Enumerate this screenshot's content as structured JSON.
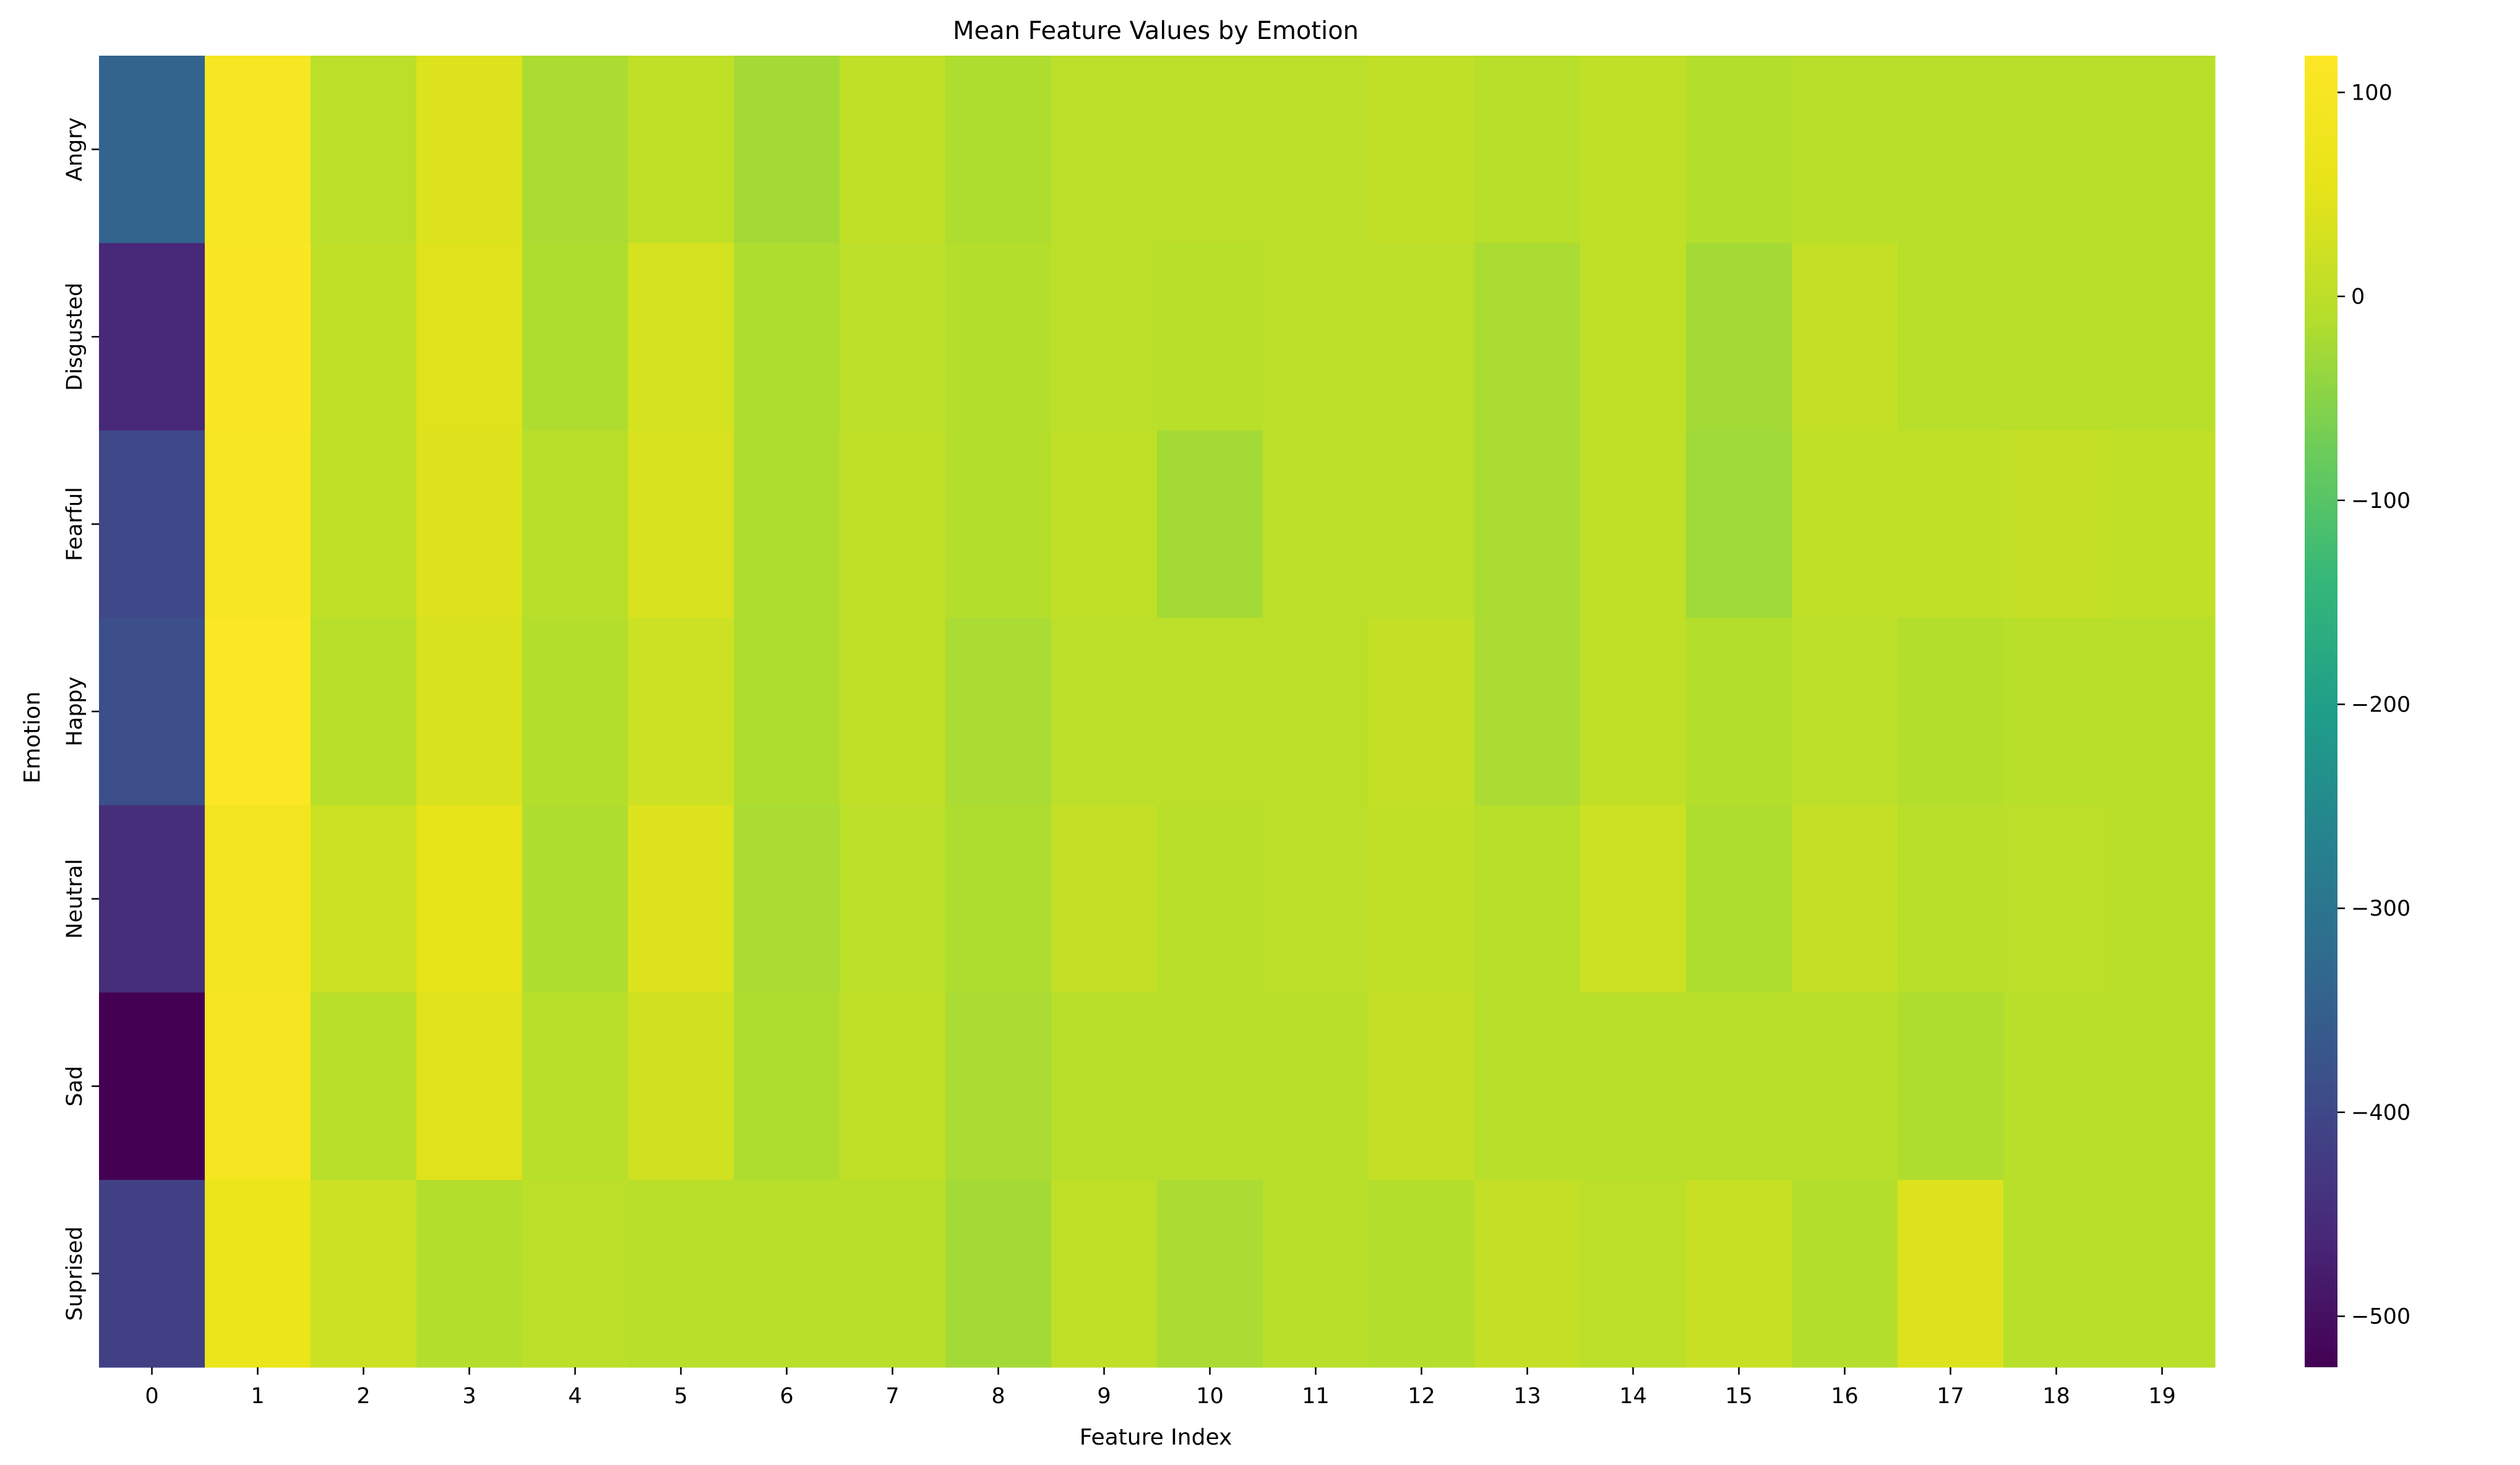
{
  "chart_data": {
    "type": "heatmap",
    "title": "Mean Feature Values by Emotion",
    "xlabel": "Feature Index",
    "ylabel": "Emotion",
    "x_categories": [
      "0",
      "1",
      "2",
      "3",
      "4",
      "5",
      "6",
      "7",
      "8",
      "9",
      "10",
      "11",
      "12",
      "13",
      "14",
      "15",
      "16",
      "17",
      "18",
      "19"
    ],
    "y_categories": [
      "Angry",
      "Disgusted",
      "Fearful",
      "Happy",
      "Neutral",
      "Sad",
      "Suprised"
    ],
    "values": [
      [
        -340,
        100,
        0,
        40,
        -18,
        5,
        -25,
        5,
        -15,
        0,
        0,
        0,
        5,
        -5,
        5,
        -10,
        -5,
        -5,
        -5,
        -5
      ],
      [
        -460,
        108,
        5,
        45,
        -15,
        30,
        -15,
        0,
        -10,
        0,
        -5,
        0,
        0,
        -20,
        5,
        -25,
        10,
        -5,
        -5,
        -5
      ],
      [
        -400,
        100,
        5,
        40,
        -5,
        35,
        -15,
        5,
        -10,
        5,
        -25,
        0,
        0,
        -20,
        5,
        -30,
        5,
        5,
        10,
        5
      ],
      [
        -385,
        115,
        -5,
        35,
        -10,
        20,
        -15,
        5,
        -20,
        0,
        0,
        0,
        10,
        -20,
        5,
        -10,
        0,
        -10,
        -5,
        -5
      ],
      [
        -450,
        85,
        20,
        55,
        -15,
        40,
        -20,
        0,
        -15,
        10,
        -5,
        0,
        5,
        -5,
        20,
        -15,
        10,
        -5,
        0,
        -5
      ],
      [
        -525,
        95,
        -5,
        45,
        -5,
        25,
        -15,
        5,
        -20,
        -5,
        -5,
        -5,
        10,
        -5,
        -5,
        -5,
        -5,
        -15,
        -5,
        -5
      ],
      [
        -415,
        65,
        20,
        -10,
        0,
        -5,
        -5,
        -5,
        -25,
        5,
        -20,
        -5,
        -10,
        10,
        0,
        15,
        -10,
        40,
        -5,
        -5
      ]
    ],
    "colorbar": {
      "colormap": "viridis",
      "vmin": -525,
      "vmax": 118,
      "ticks": [
        100,
        0,
        -100,
        -200,
        -300,
        -400,
        -500
      ],
      "tick_labels": [
        "100",
        "0",
        "−100",
        "−200",
        "−300",
        "−400",
        "−500"
      ]
    },
    "grid": false,
    "legend": "none"
  }
}
